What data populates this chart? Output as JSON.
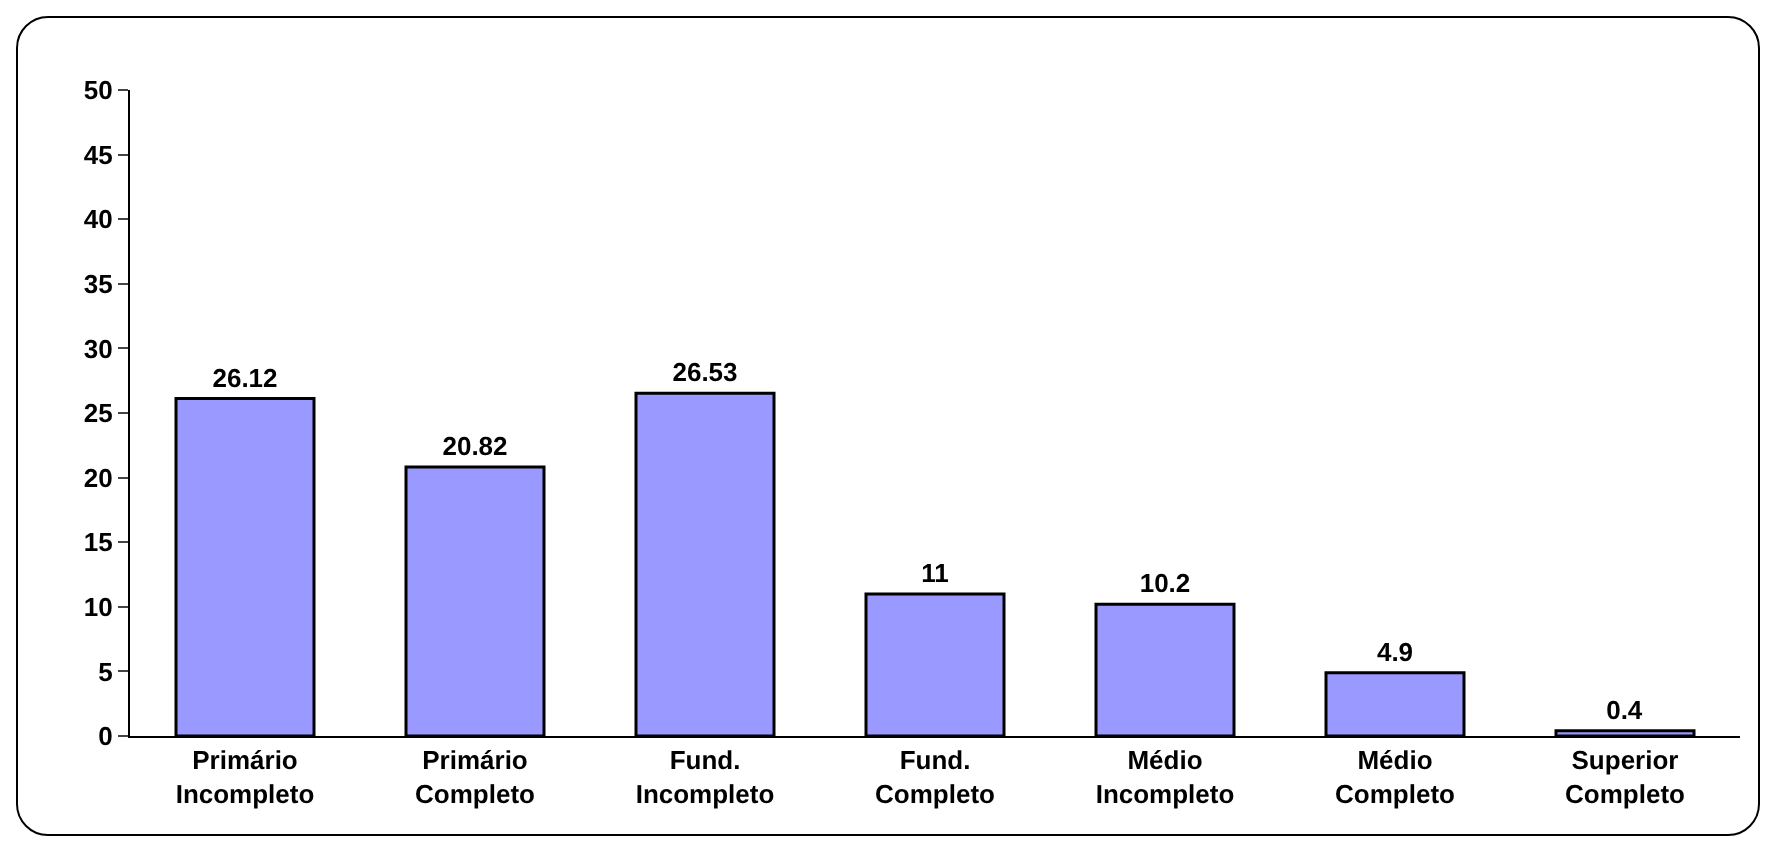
{
  "chart_data": {
    "type": "bar",
    "categories": [
      "Primário\nIncompleto",
      "Primário\nCompleto",
      "Fund.\nIncompleto",
      "Fund.\nCompleto",
      "Médio\nIncompleto",
      "Médio\nCompleto",
      "Superior\nCompleto"
    ],
    "values": [
      26.12,
      20.82,
      26.53,
      11,
      10.2,
      4.9,
      0.4
    ],
    "color": "#9999ff",
    "data_labels": true,
    "ylim": [
      0,
      50
    ],
    "yticks": [
      0,
      5,
      10,
      15,
      20,
      25,
      30,
      35,
      40,
      45,
      50
    ],
    "grid": false,
    "legend": false
  }
}
